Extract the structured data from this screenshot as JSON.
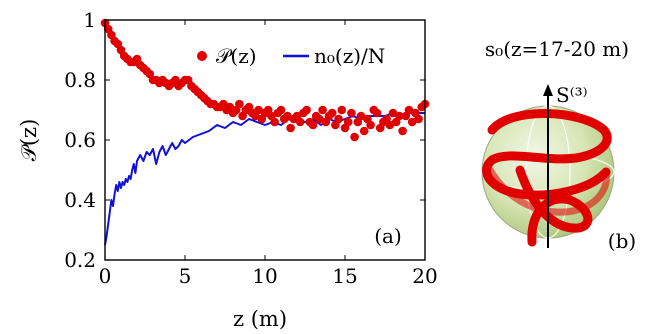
{
  "chart_data": [
    {
      "type": "scatter+line",
      "panel_label": "(a)",
      "xlabel": "z (m)",
      "ylabel": "𝒫(z)",
      "xlim": [
        0,
        20
      ],
      "ylim": [
        0.2,
        1.0
      ],
      "xticks": [
        "0",
        "5",
        "10",
        "15",
        "20"
      ],
      "yticks": [
        "0.2",
        "0.4",
        "0.6",
        "0.8",
        "1"
      ],
      "grid": false,
      "legend_position": "top-right",
      "series": [
        {
          "name": "𝒫(z)",
          "kind": "scatter",
          "color": "#e00000",
          "x": [
            0.0,
            0.2,
            0.4,
            0.6,
            0.8,
            1.0,
            1.2,
            1.4,
            1.6,
            1.8,
            2.0,
            2.2,
            2.4,
            2.6,
            2.8,
            3.0,
            3.2,
            3.4,
            3.6,
            3.8,
            4.0,
            4.2,
            4.4,
            4.6,
            4.8,
            5.0,
            5.2,
            5.4,
            5.6,
            5.8,
            6.0,
            6.2,
            6.4,
            6.6,
            6.8,
            7.0,
            7.2,
            7.4,
            7.6,
            7.8,
            8.0,
            8.2,
            8.4,
            8.6,
            8.8,
            9.0,
            9.2,
            9.4,
            9.6,
            9.8,
            10.0,
            10.2,
            10.4,
            10.6,
            10.8,
            11.0,
            11.2,
            11.4,
            11.6,
            11.8,
            12.0,
            12.2,
            12.4,
            12.6,
            12.8,
            13.0,
            13.2,
            13.4,
            13.6,
            13.8,
            14.0,
            14.2,
            14.4,
            14.6,
            14.8,
            15.0,
            15.2,
            15.4,
            15.6,
            15.8,
            16.0,
            16.2,
            16.4,
            16.6,
            16.8,
            17.0,
            17.2,
            17.4,
            17.6,
            17.8,
            18.0,
            18.2,
            18.4,
            18.6,
            18.8,
            19.0,
            19.2,
            19.4,
            19.6,
            19.8,
            20.0
          ],
          "y": [
            0.99,
            0.97,
            0.95,
            0.93,
            0.92,
            0.9,
            0.88,
            0.87,
            0.86,
            0.86,
            0.87,
            0.85,
            0.84,
            0.83,
            0.82,
            0.8,
            0.8,
            0.79,
            0.8,
            0.79,
            0.78,
            0.79,
            0.8,
            0.78,
            0.79,
            0.8,
            0.8,
            0.78,
            0.77,
            0.76,
            0.75,
            0.74,
            0.73,
            0.72,
            0.72,
            0.71,
            0.71,
            0.72,
            0.7,
            0.71,
            0.69,
            0.7,
            0.72,
            0.68,
            0.7,
            0.71,
            0.69,
            0.68,
            0.7,
            0.67,
            0.69,
            0.7,
            0.68,
            0.66,
            0.69,
            0.7,
            0.67,
            0.68,
            0.64,
            0.67,
            0.68,
            0.66,
            0.69,
            0.7,
            0.66,
            0.65,
            0.68,
            0.67,
            0.7,
            0.66,
            0.68,
            0.69,
            0.65,
            0.67,
            0.7,
            0.64,
            0.66,
            0.69,
            0.61,
            0.66,
            0.68,
            0.63,
            0.67,
            0.65,
            0.7,
            0.69,
            0.64,
            0.66,
            0.67,
            0.65,
            0.69,
            0.66,
            0.68,
            0.63,
            0.68,
            0.7,
            0.66,
            0.69,
            0.67,
            0.71,
            0.72
          ]
        },
        {
          "name": "n₀(z)/N",
          "kind": "line",
          "color": "#1010d8",
          "x": [
            0.0,
            0.1,
            0.2,
            0.3,
            0.4,
            0.5,
            0.6,
            0.7,
            0.8,
            0.9,
            1.0,
            1.1,
            1.2,
            1.3,
            1.4,
            1.5,
            1.6,
            1.7,
            1.8,
            1.9,
            2.0,
            2.2,
            2.4,
            2.6,
            2.8,
            3.0,
            3.2,
            3.4,
            3.6,
            3.8,
            4.0,
            4.2,
            4.4,
            4.6,
            4.8,
            5.0,
            5.5,
            6.0,
            6.5,
            7.0,
            7.5,
            8.0,
            8.5,
            9.0,
            9.5,
            10.0,
            10.5,
            11.0,
            11.5,
            12.0,
            12.5,
            13.0,
            13.5,
            14.0,
            14.5,
            15.0,
            15.5,
            16.0,
            16.5,
            17.0,
            17.5,
            18.0,
            18.5,
            19.0,
            19.5,
            20.0
          ],
          "y": [
            0.25,
            0.28,
            0.32,
            0.36,
            0.4,
            0.38,
            0.42,
            0.45,
            0.43,
            0.46,
            0.44,
            0.46,
            0.45,
            0.47,
            0.46,
            0.48,
            0.47,
            0.5,
            0.52,
            0.49,
            0.53,
            0.55,
            0.53,
            0.56,
            0.55,
            0.57,
            0.52,
            0.56,
            0.58,
            0.55,
            0.57,
            0.59,
            0.57,
            0.58,
            0.6,
            0.59,
            0.61,
            0.62,
            0.63,
            0.65,
            0.64,
            0.66,
            0.65,
            0.67,
            0.66,
            0.65,
            0.66,
            0.65,
            0.67,
            0.66,
            0.66,
            0.67,
            0.65,
            0.67,
            0.66,
            0.67,
            0.68,
            0.67,
            0.68,
            0.68,
            0.68,
            0.69,
            0.68,
            0.69,
            0.69,
            0.69
          ]
        }
      ]
    },
    {
      "type": "diagram",
      "panel_label": "(b)",
      "title": "s₀(z=17-20 m)",
      "axis_label": "S⁽³⁾",
      "sphere_color": "#c8dba0",
      "trajectory_color": "#e00000"
    }
  ]
}
